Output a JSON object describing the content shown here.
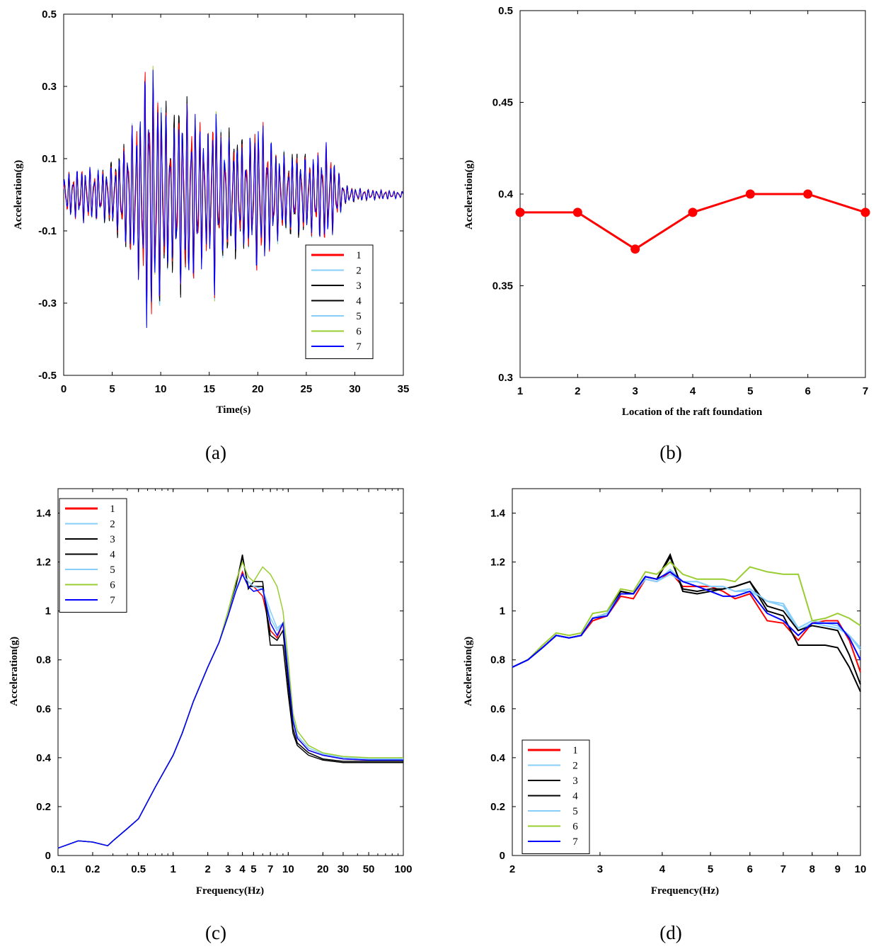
{
  "chart_data": [
    {
      "panel": "(a)",
      "type": "line",
      "caption": "(a)",
      "xlabel": "Time(s)",
      "ylabel": "Acceleration(g)",
      "xlim": [
        0,
        35
      ],
      "ylim": [
        -0.5,
        0.5
      ],
      "xticks": [
        "0",
        "5",
        "10",
        "15",
        "20",
        "25",
        "30",
        "35"
      ],
      "yticks": [
        "-0.5",
        "-0.3",
        "-0.1",
        "0.1",
        "0.3",
        "0.5"
      ],
      "legend": [
        "1",
        "2",
        "3",
        "4",
        "5",
        "6",
        "7"
      ],
      "legend_position": "bottom-right",
      "colors": [
        "#ff0000",
        "#87cefa",
        "#000000",
        "#000000",
        "#87cefa",
        "#9acd32",
        "#0000ff"
      ],
      "envelope": {
        "t": [
          0,
          2,
          4,
          5,
          6,
          7,
          8,
          8.5,
          9,
          10,
          11,
          12,
          13,
          14,
          15,
          15.5,
          16,
          17,
          18,
          19,
          20,
          21,
          22,
          23,
          24,
          25,
          26,
          27,
          28,
          28.5,
          29,
          30,
          32,
          35
        ],
        "amp": [
          0.06,
          0.08,
          0.08,
          0.1,
          0.14,
          0.2,
          0.26,
          0.4,
          0.38,
          0.33,
          0.22,
          0.29,
          0.28,
          0.22,
          0.18,
          0.32,
          0.2,
          0.19,
          0.18,
          0.16,
          0.23,
          0.18,
          0.14,
          0.12,
          0.13,
          0.12,
          0.12,
          0.15,
          0.1,
          0.06,
          0.03,
          0.02,
          0.015,
          0.01
        ]
      }
    },
    {
      "panel": "(b)",
      "type": "line",
      "caption": "(b)",
      "xlabel": "Location of the raft foundation",
      "ylabel": "Acceleration(g)",
      "xlim": [
        1,
        7
      ],
      "ylim": [
        0.3,
        0.5
      ],
      "xticks": [
        "1",
        "2",
        "3",
        "4",
        "5",
        "6",
        "7"
      ],
      "yticks": [
        "0.3",
        "0.35",
        "0.4",
        "0.45",
        "0.5"
      ],
      "x": [
        1,
        2,
        3,
        4,
        5,
        6,
        7
      ],
      "y": [
        0.39,
        0.39,
        0.37,
        0.39,
        0.4,
        0.4,
        0.39
      ],
      "color": "#ff0000"
    },
    {
      "panel": "(c)",
      "type": "line",
      "caption": "(c)",
      "xlabel": "Frequency(Hz)",
      "ylabel": "Acceleration(g)",
      "xscale": "log",
      "xlim": [
        0.1,
        100
      ],
      "ylim": [
        0,
        1.5
      ],
      "xticks": [
        "0.1",
        "0.2",
        "0.5",
        "1",
        "2",
        "3",
        "4",
        "5",
        "7",
        "10",
        "20",
        "30",
        "50",
        "100"
      ],
      "yticks": [
        "0",
        "0.2",
        "0.4",
        "0.6",
        "0.8",
        "1",
        "1.2",
        "1.4"
      ],
      "legend": [
        "1",
        "2",
        "3",
        "4",
        "5",
        "6",
        "7"
      ],
      "legend_position": "top-left",
      "colors": [
        "#ff0000",
        "#87cefa",
        "#000000",
        "#000000",
        "#87cefa",
        "#9acd32",
        "#0000ff"
      ],
      "x": [
        0.1,
        0.15,
        0.2,
        0.27,
        0.3,
        0.4,
        0.5,
        0.7,
        1,
        1.2,
        1.5,
        2,
        2.5,
        3,
        3.5,
        4,
        4.5,
        5,
        6,
        7,
        8,
        9,
        10,
        11,
        12,
        15,
        20,
        30,
        50,
        100
      ],
      "series": [
        {
          "name": "1",
          "values": [
            0.03,
            0.06,
            0.055,
            0.04,
            0.06,
            0.11,
            0.15,
            0.28,
            0.41,
            0.5,
            0.63,
            0.77,
            0.87,
            0.98,
            1.08,
            1.16,
            1.1,
            1.1,
            1.06,
            0.92,
            0.89,
            0.95,
            0.73,
            0.55,
            0.48,
            0.43,
            0.41,
            0.395,
            0.39,
            0.39
          ]
        },
        {
          "name": "2",
          "values": [
            0.03,
            0.06,
            0.055,
            0.04,
            0.06,
            0.11,
            0.15,
            0.28,
            0.41,
            0.5,
            0.63,
            0.77,
            0.87,
            0.98,
            1.09,
            1.15,
            1.12,
            1.1,
            1.09,
            0.97,
            0.92,
            0.95,
            0.75,
            0.56,
            0.49,
            0.44,
            0.415,
            0.4,
            0.395,
            0.395
          ]
        },
        {
          "name": "3",
          "values": [
            0.03,
            0.06,
            0.055,
            0.04,
            0.06,
            0.11,
            0.15,
            0.28,
            0.41,
            0.5,
            0.63,
            0.77,
            0.87,
            0.98,
            1.1,
            1.23,
            1.09,
            1.12,
            1.12,
            0.86,
            0.86,
            0.86,
            0.66,
            0.5,
            0.45,
            0.41,
            0.39,
            0.38,
            0.38,
            0.38
          ]
        },
        {
          "name": "4",
          "values": [
            0.03,
            0.06,
            0.055,
            0.04,
            0.06,
            0.11,
            0.15,
            0.28,
            0.41,
            0.5,
            0.63,
            0.77,
            0.87,
            0.98,
            1.1,
            1.22,
            1.1,
            1.1,
            1.1,
            0.9,
            0.88,
            0.92,
            0.7,
            0.52,
            0.46,
            0.42,
            0.395,
            0.385,
            0.385,
            0.385
          ]
        },
        {
          "name": "5",
          "values": [
            0.03,
            0.06,
            0.055,
            0.04,
            0.06,
            0.11,
            0.15,
            0.28,
            0.41,
            0.5,
            0.63,
            0.77,
            0.87,
            0.98,
            1.09,
            1.15,
            1.12,
            1.1,
            1.09,
            1.0,
            0.93,
            0.95,
            0.76,
            0.56,
            0.49,
            0.44,
            0.415,
            0.4,
            0.395,
            0.395
          ]
        },
        {
          "name": "6",
          "values": [
            0.03,
            0.06,
            0.055,
            0.04,
            0.06,
            0.11,
            0.15,
            0.28,
            0.41,
            0.5,
            0.63,
            0.77,
            0.87,
            1.0,
            1.12,
            1.2,
            1.14,
            1.12,
            1.18,
            1.15,
            1.1,
            1.0,
            0.8,
            0.58,
            0.51,
            0.45,
            0.42,
            0.405,
            0.4,
            0.4
          ]
        },
        {
          "name": "7",
          "values": [
            0.03,
            0.06,
            0.055,
            0.04,
            0.06,
            0.11,
            0.15,
            0.28,
            0.41,
            0.5,
            0.63,
            0.77,
            0.87,
            0.98,
            1.08,
            1.15,
            1.1,
            1.08,
            1.09,
            0.95,
            0.9,
            0.95,
            0.74,
            0.55,
            0.48,
            0.43,
            0.41,
            0.395,
            0.39,
            0.39
          ]
        }
      ]
    },
    {
      "panel": "(d)",
      "type": "line",
      "caption": "(d)",
      "xlabel": "Frequency(Hz)",
      "ylabel": "Acceleration(g)",
      "xscale": "log",
      "xlim": [
        2,
        10
      ],
      "ylim": [
        0,
        1.5
      ],
      "xticks": [
        "2",
        "3",
        "4",
        "5",
        "6",
        "7",
        "8",
        "9",
        "10"
      ],
      "yticks": [
        "0",
        "0.2",
        "0.4",
        "0.6",
        "0.8",
        "1",
        "1.2",
        "1.4"
      ],
      "legend": [
        "1",
        "2",
        "3",
        "4",
        "5",
        "6",
        "7"
      ],
      "legend_position": "bottom-left",
      "colors": [
        "#ff0000",
        "#87cefa",
        "#000000",
        "#000000",
        "#87cefa",
        "#9acd32",
        "#0000ff"
      ],
      "x": [
        2,
        2.15,
        2.3,
        2.45,
        2.6,
        2.75,
        2.9,
        3.1,
        3.3,
        3.5,
        3.7,
        3.9,
        4.15,
        4.4,
        4.7,
        5.0,
        5.3,
        5.6,
        6.0,
        6.5,
        7.0,
        7.5,
        8.0,
        8.5,
        9.0,
        9.5,
        10.0
      ],
      "series": [
        {
          "name": "1",
          "values": [
            0.77,
            0.8,
            0.85,
            0.9,
            0.89,
            0.9,
            0.96,
            0.98,
            1.06,
            1.05,
            1.13,
            1.12,
            1.16,
            1.1,
            1.1,
            1.1,
            1.08,
            1.05,
            1.07,
            0.96,
            0.95,
            0.88,
            0.95,
            0.96,
            0.96,
            0.88,
            0.75
          ]
        },
        {
          "name": "2",
          "values": [
            0.77,
            0.8,
            0.85,
            0.9,
            0.89,
            0.9,
            0.97,
            0.99,
            1.07,
            1.07,
            1.13,
            1.12,
            1.17,
            1.12,
            1.12,
            1.1,
            1.1,
            1.08,
            1.08,
            1.04,
            1.02,
            0.92,
            0.95,
            0.94,
            0.93,
            0.9,
            0.84
          ]
        },
        {
          "name": "3",
          "values": [
            0.77,
            0.8,
            0.85,
            0.9,
            0.89,
            0.9,
            0.97,
            0.99,
            1.08,
            1.07,
            1.14,
            1.13,
            1.23,
            1.08,
            1.07,
            1.08,
            1.09,
            1.1,
            1.12,
            1.0,
            0.98,
            0.86,
            0.86,
            0.86,
            0.85,
            0.77,
            0.67
          ]
        },
        {
          "name": "4",
          "values": [
            0.77,
            0.8,
            0.85,
            0.9,
            0.89,
            0.9,
            0.97,
            0.99,
            1.08,
            1.07,
            1.14,
            1.13,
            1.22,
            1.09,
            1.08,
            1.09,
            1.09,
            1.1,
            1.12,
            1.02,
            1.0,
            0.92,
            0.94,
            0.93,
            0.92,
            0.82,
            0.7
          ]
        },
        {
          "name": "5",
          "values": [
            0.77,
            0.8,
            0.85,
            0.9,
            0.89,
            0.9,
            0.97,
            0.99,
            1.07,
            1.07,
            1.13,
            1.12,
            1.15,
            1.12,
            1.12,
            1.1,
            1.1,
            1.08,
            1.09,
            1.04,
            1.03,
            0.93,
            0.96,
            0.95,
            0.94,
            0.9,
            0.85
          ]
        },
        {
          "name": "6",
          "values": [
            0.77,
            0.8,
            0.86,
            0.91,
            0.9,
            0.91,
            0.99,
            1.0,
            1.09,
            1.08,
            1.16,
            1.15,
            1.2,
            1.15,
            1.13,
            1.13,
            1.13,
            1.12,
            1.18,
            1.16,
            1.15,
            1.15,
            0.96,
            0.97,
            0.99,
            0.97,
            0.94
          ]
        },
        {
          "name": "7",
          "values": [
            0.77,
            0.8,
            0.85,
            0.9,
            0.89,
            0.9,
            0.97,
            0.98,
            1.07,
            1.07,
            1.14,
            1.13,
            1.16,
            1.12,
            1.1,
            1.08,
            1.06,
            1.06,
            1.08,
            0.99,
            0.96,
            0.9,
            0.95,
            0.95,
            0.95,
            0.89,
            0.8
          ]
        }
      ]
    }
  ]
}
